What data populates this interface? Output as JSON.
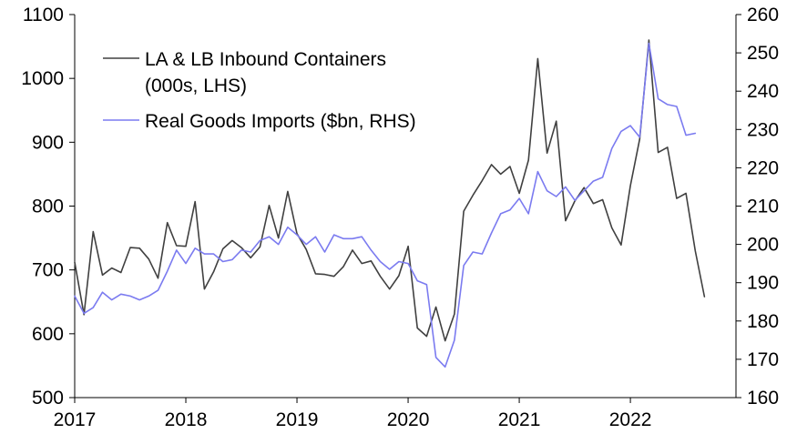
{
  "chart_data": {
    "type": "line",
    "title": "",
    "x_ticks": [
      "2017",
      "2018",
      "2019",
      "2020",
      "2021",
      "2022"
    ],
    "x_range": [
      2017.0,
      2022.95
    ],
    "y_left": {
      "range": [
        500,
        1100
      ],
      "ticks": [
        "500",
        "600",
        "700",
        "800",
        "900",
        "1000",
        "1100"
      ]
    },
    "y_right": {
      "range": [
        160,
        260
      ],
      "ticks": [
        "160",
        "170",
        "180",
        "190",
        "200",
        "210",
        "220",
        "230",
        "240",
        "250",
        "260"
      ]
    },
    "legend": [
      {
        "label_line1": "LA & LB Inbound Containers",
        "label_line2": "(000s, LHS)",
        "color": "#404040"
      },
      {
        "label_line1": "Real Goods Imports ($bn, RHS)",
        "label_line2": "",
        "color": "#7b7bf0"
      }
    ],
    "series": [
      {
        "name": "LA & LB Inbound Containers (000s, LHS)",
        "axis": "left",
        "color": "#404040",
        "start": 2017.0,
        "step_months": 1,
        "values": [
          712,
          630,
          760,
          692,
          703,
          696,
          735,
          734,
          717,
          687,
          774,
          738,
          737,
          807,
          670,
          697,
          733,
          746,
          735,
          719,
          736,
          801,
          750,
          823,
          757,
          732,
          694,
          693,
          690,
          705,
          731,
          710,
          714,
          690,
          670,
          691,
          737,
          609,
          596,
          642,
          589,
          631,
          792,
          817,
          840,
          865,
          850,
          862,
          820,
          872,
          1031,
          883,
          933,
          777,
          808,
          829,
          804,
          810,
          766,
          739,
          832,
          905,
          1060,
          884,
          892,
          812,
          820,
          730,
          658
        ]
      },
      {
        "name": "Real Goods Imports ($bn, RHS)",
        "axis": "right",
        "color": "#7b7bf0",
        "start": 2017.0,
        "step_months": 1,
        "values": [
          186.5,
          182.0,
          183.5,
          187.5,
          185.5,
          187.0,
          186.5,
          185.5,
          186.5,
          188.0,
          193.0,
          198.5,
          195.0,
          199.0,
          197.5,
          197.5,
          195.5,
          196.0,
          198.5,
          198.0,
          201.0,
          202.0,
          200.0,
          204.5,
          202.5,
          200.0,
          202.0,
          198.0,
          202.5,
          201.5,
          201.5,
          202.0,
          198.5,
          195.5,
          193.5,
          195.5,
          195.0,
          190.5,
          189.5,
          170.5,
          168.0,
          175.0,
          194.5,
          198.0,
          197.5,
          203.0,
          208.0,
          209.0,
          212.0,
          208.0,
          219.0,
          214.0,
          212.5,
          215.0,
          211.5,
          214.0,
          216.5,
          217.5,
          225.0,
          229.5,
          231.0,
          228.0,
          252.5,
          238.0,
          236.5,
          236.0,
          228.5,
          229.0
        ]
      }
    ]
  }
}
